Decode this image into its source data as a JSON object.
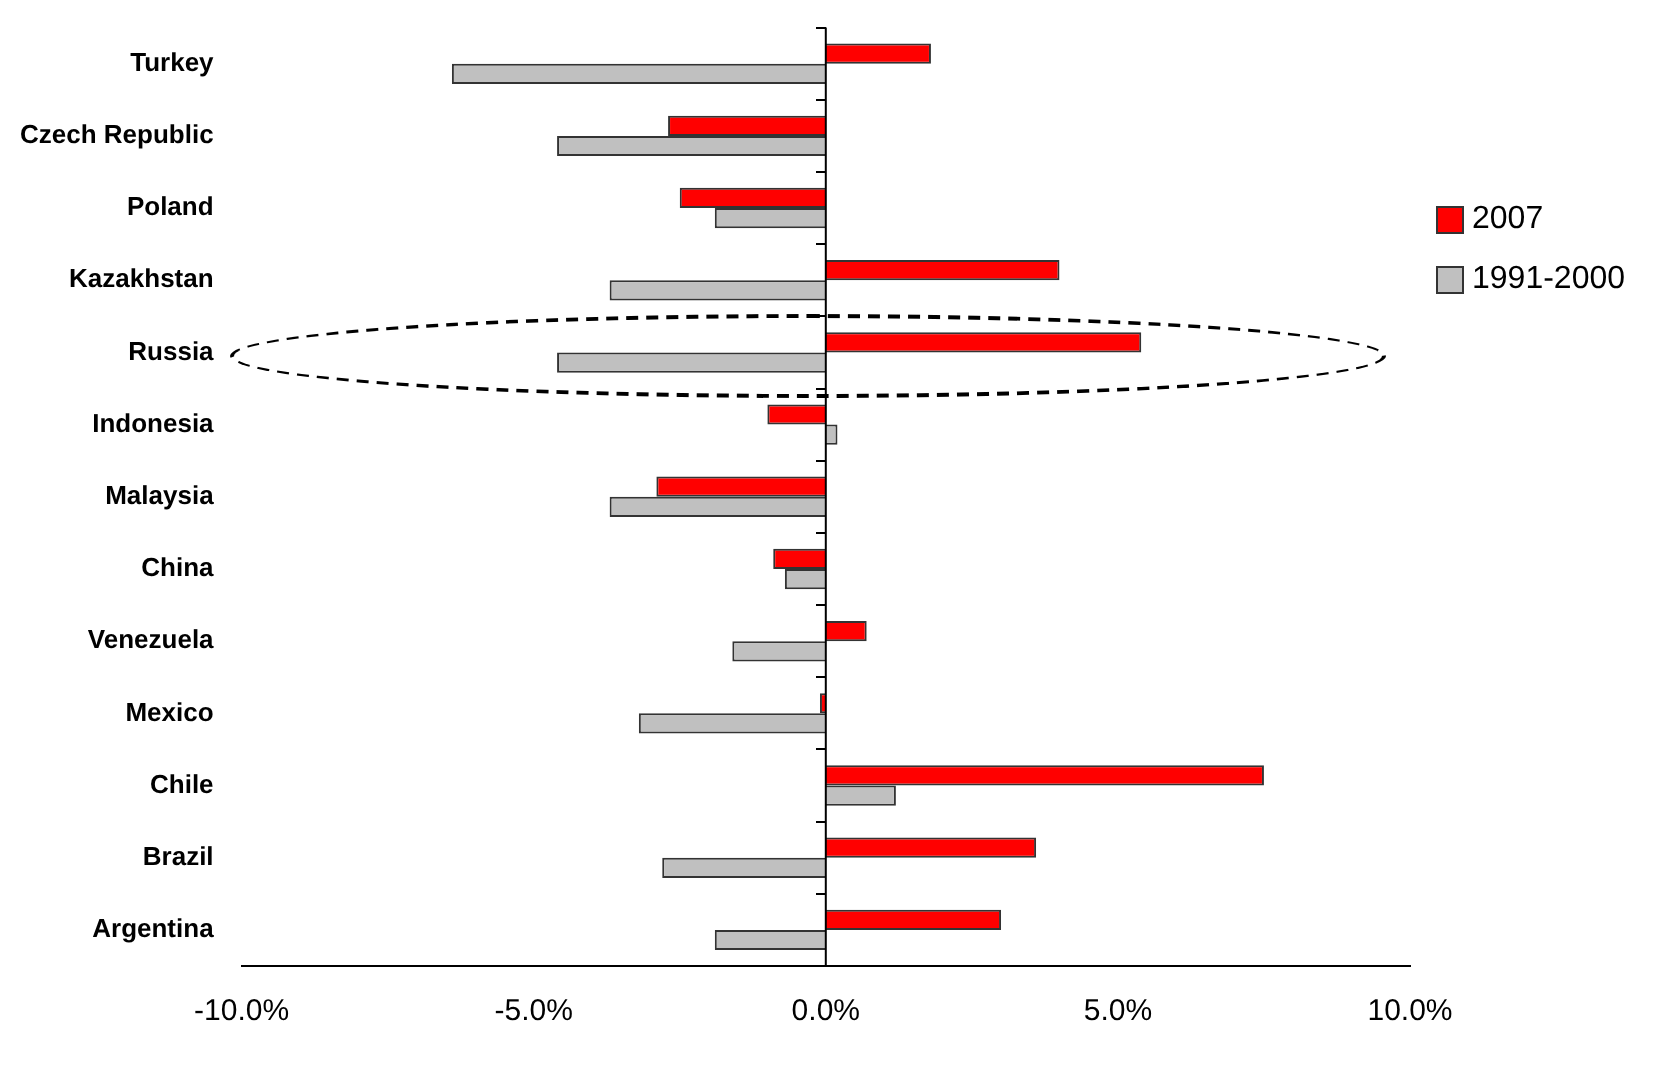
{
  "chart_data": {
    "type": "bar",
    "orientation": "horizontal",
    "categories": [
      "Turkey",
      "Czech Republic",
      "Poland",
      "Kazakhstan",
      "Russia",
      "Indonesia",
      "Malaysia",
      "China",
      "Venezuela",
      "Mexico",
      "Chile",
      "Brazil",
      "Argentina"
    ],
    "series": [
      {
        "name": "2007",
        "color": "#ff0000",
        "values": [
          1.8,
          -2.7,
          -2.5,
          4.0,
          5.4,
          -1.0,
          -2.9,
          -0.9,
          0.7,
          -0.1,
          7.5,
          3.6,
          3.0
        ]
      },
      {
        "name": "1991-2000",
        "color": "#c0c0c0",
        "values": [
          -6.4,
          -4.6,
          -1.9,
          -3.7,
          -4.6,
          0.2,
          -3.7,
          -0.7,
          -1.6,
          -3.2,
          1.2,
          -2.8,
          -1.9
        ]
      }
    ],
    "xlim": [
      -10,
      10
    ],
    "xticks": [
      {
        "value": -10,
        "label": "-10.0%"
      },
      {
        "value": -5,
        "label": "-5.0%"
      },
      {
        "value": 0,
        "label": "0.0%"
      },
      {
        "value": 5,
        "label": "5.0%"
      },
      {
        "value": 10,
        "label": "10.0%"
      }
    ],
    "ref_lines": [
      {
        "axis": "x",
        "value": 0,
        "color": "#000000"
      }
    ],
    "grid": false,
    "legend": "right"
  }
}
